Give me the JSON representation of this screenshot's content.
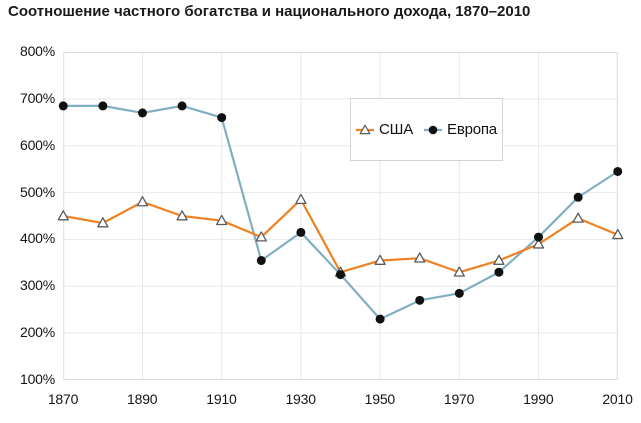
{
  "title": "Соотношение частного богатства и национального дохода, 1870–2010",
  "chart_data": {
    "type": "line",
    "x": [
      1870,
      1880,
      1890,
      1900,
      1910,
      1920,
      1930,
      1940,
      1950,
      1960,
      1970,
      1980,
      1990,
      2000,
      2010
    ],
    "series": [
      {
        "key": "usa",
        "name": "США",
        "line_color": "#F08122",
        "marker": "triangle-open",
        "marker_fill": "#ffffff",
        "marker_stroke": "#5a5a5a",
        "values": [
          450,
          435,
          480,
          450,
          440,
          405,
          485,
          330,
          355,
          360,
          330,
          355,
          390,
          445,
          410
        ]
      },
      {
        "key": "europe",
        "name": "Европа",
        "line_color": "#7FAFC0",
        "marker": "circle-filled",
        "marker_fill": "#111111",
        "marker_stroke": "#111111",
        "values": [
          685,
          685,
          670,
          685,
          660,
          355,
          415,
          325,
          230,
          270,
          285,
          330,
          405,
          490,
          545
        ]
      }
    ],
    "x_tick_labels": [
      "1870",
      "1890",
      "1910",
      "1930",
      "1950",
      "1970",
      "1990",
      "2010"
    ],
    "y_tick_labels": [
      "800%",
      "700%",
      "600%",
      "500%",
      "400%",
      "300%",
      "200%",
      "100%"
    ],
    "xlim": [
      1870,
      2010
    ],
    "ylim": [
      100,
      800
    ],
    "grid": true,
    "grid_color": "#e8e8e8",
    "border_color": "#d9d9d9",
    "legend_position": "top-center-inside"
  }
}
